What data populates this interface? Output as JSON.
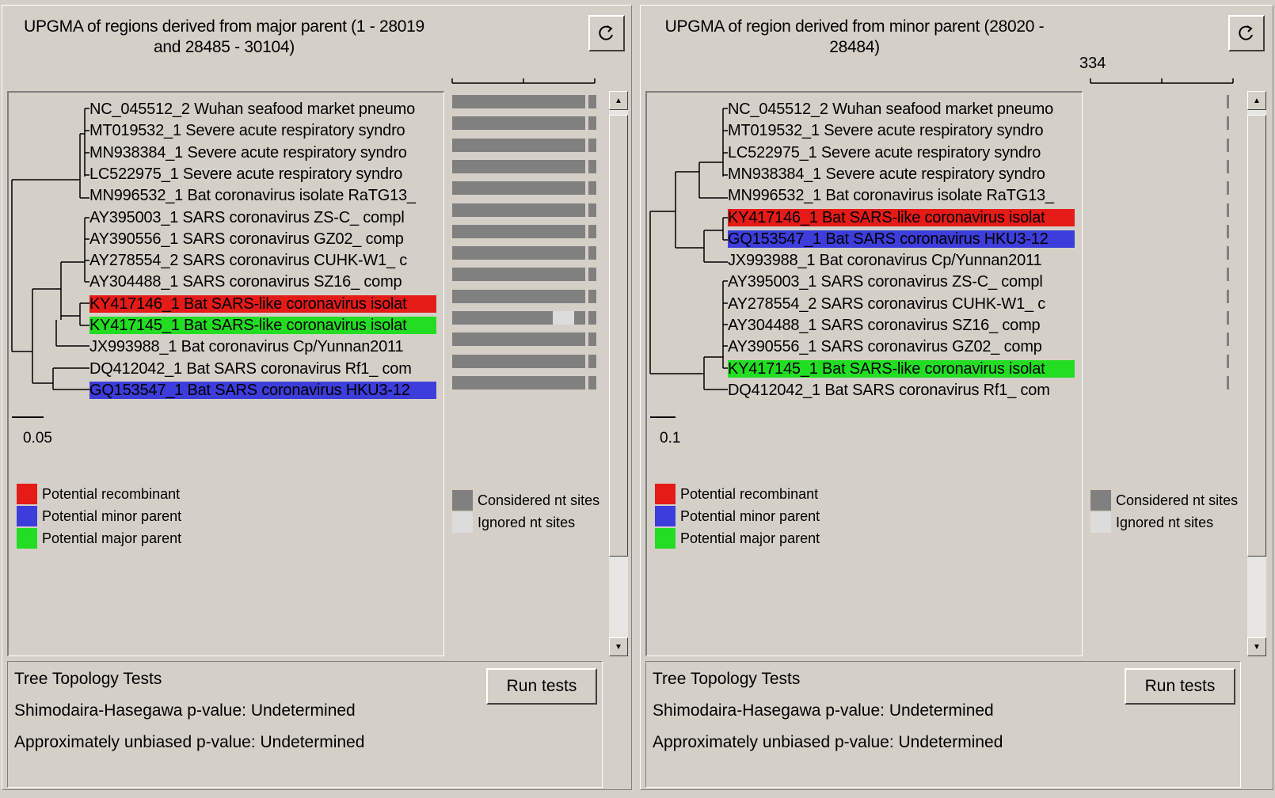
{
  "colors": {
    "recombinant": "#e41b17",
    "minor_parent": "#3d3ddb",
    "major_parent": "#22dd22",
    "considered": "#808080",
    "ignored": "#dcdcdc"
  },
  "left_panel": {
    "title_line1": "UPGMA of regions derived from major parent (1 - 28019",
    "title_line2": "and 28485 - 30104)",
    "refresh_icon": "refresh-icon",
    "scale_label": "0.05",
    "leaves": [
      {
        "text": "NC_045512_2 Wuhan seafood market pneumo",
        "highlight": ""
      },
      {
        "text": "MT019532_1 Severe acute respiratory syndro",
        "highlight": ""
      },
      {
        "text": "MN938384_1 Severe acute respiratory syndro",
        "highlight": ""
      },
      {
        "text": "LC522975_1 Severe acute respiratory syndro",
        "highlight": ""
      },
      {
        "text": "MN996532_1 Bat coronavirus isolate RaTG13_",
        "highlight": ""
      },
      {
        "text": "AY395003_1 SARS coronavirus ZS-C_ compl",
        "highlight": ""
      },
      {
        "text": "AY390556_1 SARS coronavirus GZ02_ comp",
        "highlight": ""
      },
      {
        "text": "AY278554_2 SARS coronavirus CUHK-W1_ c",
        "highlight": ""
      },
      {
        "text": "AY304488_1 SARS coronavirus SZ16_ comp",
        "highlight": ""
      },
      {
        "text": "KY417146_1 Bat SARS-like coronavirus isolat",
        "highlight": "recombinant"
      },
      {
        "text": "KY417145_1 Bat SARS-like coronavirus isolat",
        "highlight": "major_parent"
      },
      {
        "text": "JX993988_1 Bat coronavirus Cp/Yunnan2011",
        "highlight": ""
      },
      {
        "text": "DQ412042_1 Bat SARS coronavirus Rf1_ com",
        "highlight": ""
      },
      {
        "text": "GQ153547_1 Bat SARS coronavirus HKU3-12",
        "highlight": "minor_parent"
      }
    ],
    "site_ignored_fraction": [
      0,
      0,
      0,
      0,
      0,
      0,
      0,
      0,
      0,
      0,
      0.16,
      0,
      0,
      0
    ],
    "legend": {
      "recombinant": "Potential recombinant",
      "minor": "Potential minor parent",
      "major": "Potential major parent",
      "considered": "Considered nt sites",
      "ignored": "Ignored nt sites"
    },
    "tests": {
      "heading": "Tree Topology Tests",
      "sh": "Shimodaira-Hasegawa p-value: Undetermined",
      "au": "Approximately unbiased p-value: Undetermined",
      "run": "Run tests"
    }
  },
  "right_panel": {
    "title_line1": "UPGMA of region derived from minor parent (28020 -",
    "title_line2": "28484)",
    "refresh_icon": "refresh-icon",
    "scale_label": "0.1",
    "site_scale_label": "334",
    "leaves": [
      {
        "text": "NC_045512_2 Wuhan seafood market pneumo",
        "highlight": ""
      },
      {
        "text": "MT019532_1 Severe acute respiratory syndro",
        "highlight": ""
      },
      {
        "text": "LC522975_1 Severe acute respiratory syndro",
        "highlight": ""
      },
      {
        "text": "MN938384_1 Severe acute respiratory syndro",
        "highlight": ""
      },
      {
        "text": "MN996532_1 Bat coronavirus isolate RaTG13_",
        "highlight": ""
      },
      {
        "text": "KY417146_1 Bat SARS-like coronavirus isolat",
        "highlight": "recombinant"
      },
      {
        "text": "GQ153547_1 Bat SARS coronavirus HKU3-12",
        "highlight": "minor_parent"
      },
      {
        "text": "JX993988_1 Bat coronavirus Cp/Yunnan2011",
        "highlight": ""
      },
      {
        "text": "AY395003_1 SARS coronavirus ZS-C_ compl",
        "highlight": ""
      },
      {
        "text": "AY278554_2 SARS coronavirus CUHK-W1_ c",
        "highlight": ""
      },
      {
        "text": "AY304488_1 SARS coronavirus SZ16_ comp",
        "highlight": ""
      },
      {
        "text": "AY390556_1 SARS coronavirus GZ02_ comp",
        "highlight": ""
      },
      {
        "text": "KY417145_1 Bat SARS-like coronavirus isolat",
        "highlight": "major_parent"
      },
      {
        "text": "DQ412042_1 Bat SARS coronavirus Rf1_ com",
        "highlight": ""
      }
    ],
    "legend": {
      "recombinant": "Potential recombinant",
      "minor": "Potential minor parent",
      "major": "Potential major parent",
      "considered": "Considered nt sites",
      "ignored": "Ignored nt sites"
    },
    "tests": {
      "heading": "Tree Topology Tests",
      "sh": "Shimodaira-Hasegawa p-value: Undetermined",
      "au": "Approximately unbiased p-value: Undetermined",
      "run": "Run tests"
    }
  }
}
